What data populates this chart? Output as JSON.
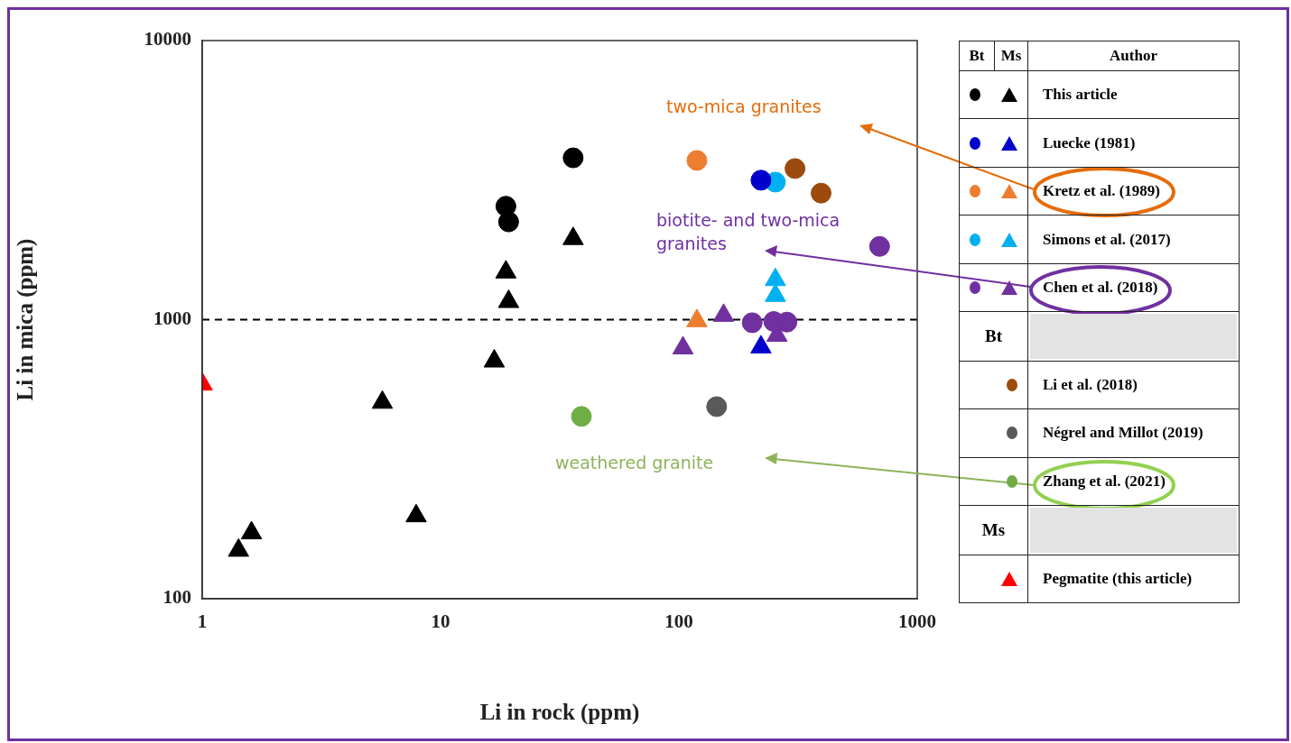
{
  "chart_data": {
    "type": "scatter",
    "xlabel": "Li in rock (ppm)",
    "ylabel": "Li in mica (ppm)",
    "legend_title": "Author",
    "log": "xy",
    "xlim": [
      1,
      1000
    ],
    "xticks": [
      1,
      10,
      100,
      1000
    ],
    "ylim": [
      100,
      10000
    ],
    "yticks": [
      100,
      1000,
      10000
    ],
    "grid": false,
    "legend": "right",
    "ref_lines": [
      {
        "axis": "y",
        "value": 1000,
        "line_style": "dashed",
        "color": "#000000"
      }
    ],
    "annotations": [
      "two-mica granites",
      "biotite- and two-mica granites",
      "weathered granite",
      "Bt",
      "Ms"
    ],
    "series": [
      {
        "name": "This article",
        "color": "#000000",
        "marker": "circle",
        "x": [
          18.8,
          19.3,
          36
        ],
        "values": [
          2550,
          2240,
          3800
        ]
      },
      {
        "color": "#000000",
        "marker": "triangle",
        "x": [
          1.42,
          1.61,
          5.7,
          7.9,
          16.8,
          18.8,
          19.3,
          36
        ],
        "values": [
          149,
          172,
          505,
          198,
          710,
          1480,
          1160,
          1950
        ]
      },
      {
        "name": "Luecke (1981)",
        "color": "#0000cc",
        "marker": "circle",
        "x": [
          221
        ],
        "values": [
          3160
        ]
      },
      {
        "color": "#0000cc",
        "marker": "triangle",
        "x": [
          221
        ],
        "values": [
          797
        ]
      },
      {
        "name": "Kretz et al. (1989)",
        "color": "#ed7d31",
        "marker": "circle",
        "x": [
          119
        ],
        "values": [
          3720
        ]
      },
      {
        "color": "#ed7d31",
        "marker": "triangle",
        "x": [
          119
        ],
        "values": [
          990
        ]
      },
      {
        "name": "Simons et al. (2017)",
        "color": "#00b0f0",
        "marker": "circle",
        "x": [
          254
        ],
        "values": [
          3110
        ]
      },
      {
        "color": "#00b0f0",
        "marker": "triangle",
        "x": [
          254,
          254
        ],
        "values": [
          1390,
          1220
        ]
      },
      {
        "name": "Chen et al. (2018)",
        "color": "#7030a0",
        "marker": "circle",
        "x": [
          203,
          250,
          284,
          695
        ],
        "values": [
          975,
          985,
          980,
          1830
        ]
      },
      {
        "color": "#7030a0",
        "marker": "triangle",
        "x": [
          104,
          154,
          258
        ],
        "values": [
          791,
          1035,
          878
        ]
      },
      {
        "name": "Li et al. (2018)",
        "color": "#9c4a0e",
        "marker": "circle",
        "x": [
          307,
          395
        ],
        "values": [
          3480,
          2840
        ]
      },
      {
        "name": "Négrel and Millot (2019)",
        "color": "#595959",
        "marker": "circle",
        "x": [
          144
        ],
        "values": [
          488
        ]
      },
      {
        "name": "Zhang et al. (2021)",
        "color": "#70ad47",
        "marker": "circle",
        "x": [
          39
        ],
        "values": [
          450
        ]
      },
      {
        "name": "Pegmatite (this article)",
        "color": "#ff0000",
        "marker": "triangle",
        "x": [
          1
        ],
        "values": [
          587
        ]
      }
    ]
  }
}
